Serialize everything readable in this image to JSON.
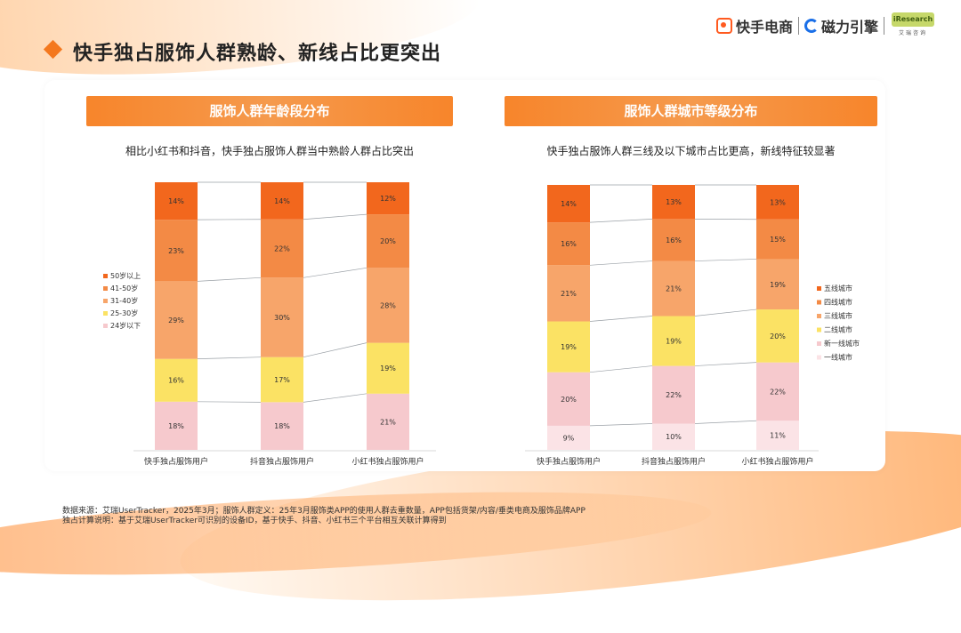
{
  "page_title": "快手独占服饰人群熟龄、新线占比更突出",
  "logos": {
    "kuaishou": "快手电商",
    "cili": "磁力引擎",
    "aurui_badge": "iResearch",
    "aurui_sub": "艾瑞咨询"
  },
  "colors": {
    "accent": "#f4781e",
    "header_gradient_start": "#f7852b",
    "header_gradient_end": "#f59a4d"
  },
  "footnotes": {
    "line1": "数据来源：艾瑞UserTracker，2025年3月；服饰人群定义：25年3月服饰类APP的使用人群去重数量，APP包括货架/内容/垂类电商及服饰品牌APP",
    "line2": "独占计算说明：基于艾瑞UserTracker可识别的设备ID，基于快手、抖音、小红书三个平台相互关联计算得到"
  },
  "chart_data": [
    {
      "type": "bar",
      "stacked": true,
      "percent": true,
      "header": "服饰人群年龄段分布",
      "subtitle": "相比小红书和抖音，快手独占服饰人群当中熟龄人群占比突出",
      "categories": [
        "快手独占服饰用户",
        "抖音独占服饰用户",
        "小红书独占服饰用户"
      ],
      "legend_position": "left",
      "series": [
        {
          "name": "24岁以下",
          "color": "#f6c9cd",
          "values": [
            18,
            18,
            21
          ]
        },
        {
          "name": "25-30岁",
          "color": "#fbe264",
          "values": [
            16,
            17,
            19
          ]
        },
        {
          "name": "31-40岁",
          "color": "#f7a56a",
          "values": [
            29,
            30,
            28
          ]
        },
        {
          "name": "41-50岁",
          "color": "#f38a45",
          "values": [
            23,
            22,
            20
          ]
        },
        {
          "name": "50岁以上",
          "color": "#f2671d",
          "values": [
            14,
            14,
            12
          ]
        }
      ]
    },
    {
      "type": "bar",
      "stacked": true,
      "percent": true,
      "header": "服饰人群城市等级分布",
      "subtitle": "快手独占服饰人群三线及以下城市占比更高，新线特征较显著",
      "categories": [
        "快手独占服饰用户",
        "抖音独占服饰用户",
        "小红书独占服饰用户"
      ],
      "legend_position": "right",
      "series": [
        {
          "name": "一线城市",
          "color": "#fbe3e6",
          "values": [
            9,
            10,
            11
          ]
        },
        {
          "name": "新一线城市",
          "color": "#f6c9cd",
          "values": [
            20,
            22,
            22
          ]
        },
        {
          "name": "二线城市",
          "color": "#fbe264",
          "values": [
            19,
            19,
            20
          ]
        },
        {
          "name": "三线城市",
          "color": "#f7a56a",
          "values": [
            21,
            21,
            19
          ]
        },
        {
          "name": "四线城市",
          "color": "#f38a45",
          "values": [
            16,
            16,
            15
          ]
        },
        {
          "name": "五线城市",
          "color": "#f2671d",
          "values": [
            14,
            13,
            13
          ]
        }
      ]
    }
  ]
}
